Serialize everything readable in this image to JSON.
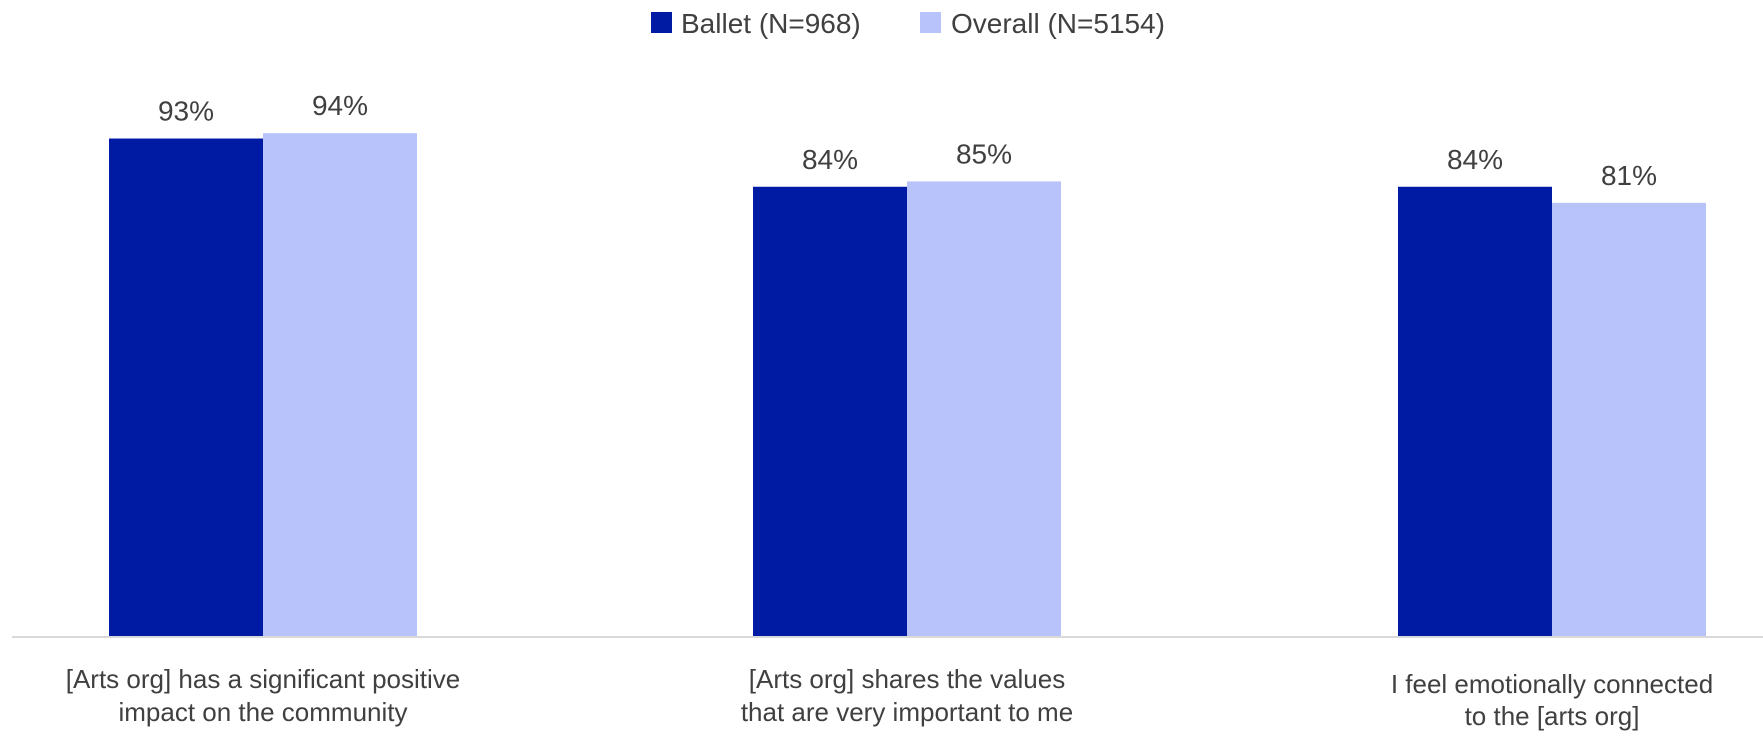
{
  "chart_data": {
    "type": "bar",
    "title": "",
    "xlabel": "",
    "ylabel": "",
    "ylim": [
      0,
      100
    ],
    "grid": false,
    "legend_position": "top-center",
    "categories": [
      [
        "[Arts org] has a significant positive",
        "impact on the community"
      ],
      [
        "[Arts org] shares the values",
        "that are very important to me"
      ],
      [
        "I feel emotionally connected",
        "to the [arts org]"
      ]
    ],
    "series": [
      {
        "name": "Ballet (N=968)",
        "color": "#001BA3",
        "values": [
          93,
          84,
          84
        ],
        "labels": [
          "93%",
          "84%",
          "84%"
        ]
      },
      {
        "name": "Overall (N=5154)",
        "color": "#B8C3FC",
        "values": [
          94,
          85,
          81
        ],
        "labels": [
          "94%",
          "85%",
          "81%"
        ]
      }
    ]
  }
}
